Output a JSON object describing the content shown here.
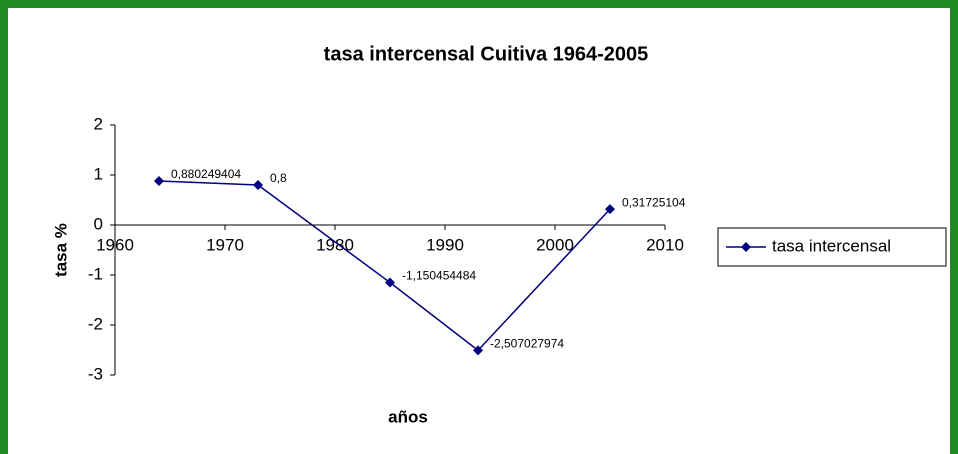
{
  "chart_data": {
    "type": "line",
    "title": "tasa intercensal Cuitiva 1964-2005",
    "x_label": "años",
    "y_label": "tasa %",
    "x": [
      1964,
      1973,
      1985,
      1993,
      2005
    ],
    "series": [
      {
        "name": "tasa intercensal",
        "color": "#000080",
        "values": [
          0.880249404,
          0.8,
          -1.150454484,
          -2.507027974,
          0.31725104
        ],
        "value_labels": [
          "0,880249404",
          "0,8",
          "-1,150454484",
          "-2,507027974",
          "0,31725104"
        ]
      }
    ],
    "xlim": [
      1960,
      2010
    ],
    "xticks": [
      1960,
      1970,
      1980,
      1990,
      2000,
      2010
    ],
    "ylim": [
      -3,
      2
    ],
    "yticks": [
      -3,
      -2,
      -1,
      0,
      1,
      2
    ],
    "legend": "right"
  }
}
